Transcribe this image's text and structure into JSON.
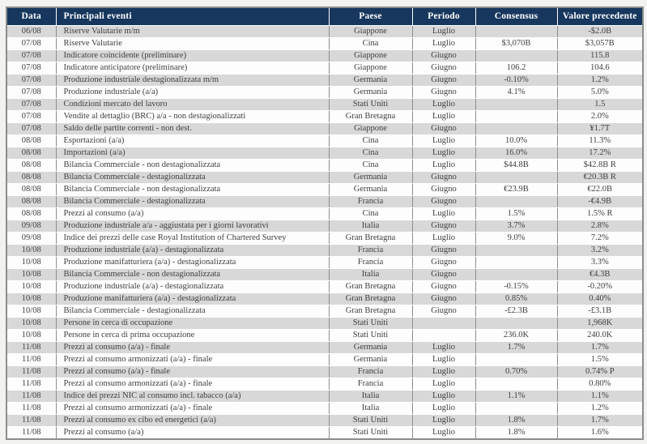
{
  "colors": {
    "header_background": "#17375E",
    "header_text": "#FFFFFF",
    "alt_row_background": "#D8D8D8",
    "row_background": "#FDFDFD",
    "grid_line": "#8C8C8C",
    "body_text": "#3F3F3F"
  },
  "table": {
    "columns": [
      "Data",
      "Principali eventi",
      "Paese",
      "Periodo",
      "Consensus",
      "Valore precedente"
    ],
    "rows": [
      [
        "06/08",
        "Riserve Valutarie m/m",
        "Giappone",
        "Luglio",
        "",
        "-$2.0B"
      ],
      [
        "07/08",
        "Riserve Valutarie",
        "Cina",
        "Luglio",
        "$3,070B",
        "$3,057B"
      ],
      [
        "07/08",
        "Indicatore coincidente (preliminare)",
        "Giappone",
        "Giugno",
        "",
        "115.8"
      ],
      [
        "07/08",
        "Indicatore anticipatore (preliminare)",
        "Giappone",
        "Giugno",
        "106.2",
        "104.6"
      ],
      [
        "07/08",
        "Produzione industriale destagionalizzata m/m",
        "Germania",
        "Giugno",
        "-0.10%",
        "1.2%"
      ],
      [
        "07/08",
        "Produzione industriale (a/a)",
        "Germania",
        "Giugno",
        "4.1%",
        "5.0%"
      ],
      [
        "07/08",
        "Condizioni mercato del lavoro",
        "Stati Uniti",
        "Luglio",
        "",
        "1.5"
      ],
      [
        "07/08",
        "Vendite al dettaglio (BRC)  a/a - non destagionalizzati",
        "Gran Bretagna",
        "Luglio",
        "",
        "2.0%"
      ],
      [
        "07/08",
        "Saldo delle partite correnti -  non dest.",
        "Giappone",
        "Giugno",
        "",
        "¥1.7T"
      ],
      [
        "08/08",
        "Esportazioni (a/a)",
        "Cina",
        "Luglio",
        "10.0%",
        "11.3%"
      ],
      [
        "08/08",
        "Importazioni (a/a)",
        "Cina",
        "Luglio",
        "16.0%",
        "17.2%"
      ],
      [
        "08/08",
        "Bilancia Commerciale - non destagionalizzata",
        "Cina",
        "Luglio",
        "$44.8B",
        "$42.8B R"
      ],
      [
        "08/08",
        "Bilancia Commerciale - destagionalizzata",
        "Germania",
        "Giugno",
        "",
        "€20.3B R"
      ],
      [
        "08/08",
        "Bilancia Commerciale - non destagionalizzata",
        "Germania",
        "Giugno",
        "€23.9B",
        "€22.0B"
      ],
      [
        "08/08",
        "Bilancia Commerciale - destagionalizzata",
        "Francia",
        "Giugno",
        "",
        "-€4.9B"
      ],
      [
        "08/08",
        "Prezzi al consumo   (a/a)",
        "Cina",
        "Luglio",
        "1.5%",
        "1.5% R"
      ],
      [
        "09/08",
        "Produzione industriale a/a - aggiustata per i giorni lavorativi",
        "Italia",
        "Giugno",
        "3.7%",
        "2.8%"
      ],
      [
        "09/08",
        "Indice dei prezzi delle case  Royal Institution of Chartered Survey",
        "Gran Bretagna",
        "Luglio",
        "9.0%",
        "7.2%"
      ],
      [
        "10/08",
        "Produzione industriale (a/a) - destagionalizzata",
        "Francia",
        "Giugno",
        "",
        "3.2%"
      ],
      [
        "10/08",
        "Produzione manifatturiera (a/a) -  destagionalizzata",
        "Francia",
        "Giugno",
        "",
        "3.3%"
      ],
      [
        "10/08",
        "Bilancia Commerciale - non destagionalizzata",
        "Italia",
        "Giugno",
        "",
        "€4.3B"
      ],
      [
        "10/08",
        "Produzione industriale (a/a) - destagionalizzata",
        "Gran Bretagna",
        "Giugno",
        "-0.15%",
        "-0.20%"
      ],
      [
        "10/08",
        "Produzione manifatturiera (a/a) -  destagionalizzata",
        "Gran Bretagna",
        "Giugno",
        "0.85%",
        "0.40%"
      ],
      [
        "10/08",
        "Bilancia Commerciale - destagionalizzata",
        "Gran Bretagna",
        "Giugno",
        "-£2.3B",
        "-£3.1B"
      ],
      [
        "10/08",
        "Persone in cerca di occupazione",
        "Stati Uniti",
        "",
        "",
        "1,968K"
      ],
      [
        "10/08",
        "Persone in cerca di prima occupazione",
        "Stati Uniti",
        "",
        "236.0K",
        "240.0K"
      ],
      [
        "11/08",
        "Prezzi al consumo (a/a) - finale",
        "Germania",
        "Luglio",
        "1.7%",
        "1.7%"
      ],
      [
        "11/08",
        "Prezzi al consumo armonizzati (a/a) - finale",
        "Germania",
        "Luglio",
        "",
        "1.5%"
      ],
      [
        "11/08",
        "Prezzi al consumo (a/a) - finale",
        "Francia",
        "Luglio",
        "0.70%",
        "0.74% P"
      ],
      [
        "11/08",
        "Prezzi al consumo armonizzati (a/a) - finale",
        "Francia",
        "Luglio",
        "",
        "0.80%"
      ],
      [
        "11/08",
        "Indice dei prezzi NIC al consumo incl. tabacco (a/a)",
        "Italia",
        "Luglio",
        "1.1%",
        "1.1%"
      ],
      [
        "11/08",
        "Prezzi al consumo armonizzati (a/a) - finale",
        "Italia",
        "Luglio",
        "",
        "1.2%"
      ],
      [
        "11/08",
        "Prezzi al consumo ex cibo ed energetici  (a/a)",
        "Stati Uniti",
        "Luglio",
        "1.8%",
        "1.7%"
      ],
      [
        "11/08",
        "Prezzi al consumo  (a/a)",
        "Stati Uniti",
        "Luglio",
        "1.8%",
        "1.6%"
      ]
    ]
  }
}
